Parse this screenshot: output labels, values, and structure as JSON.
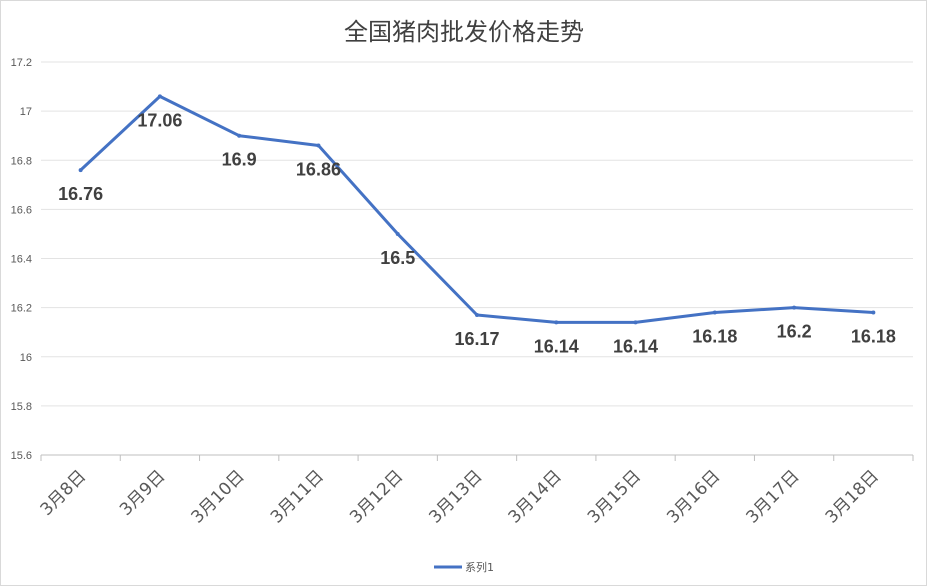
{
  "chart_data": {
    "type": "line",
    "title": "全国猪肉批发价格走势",
    "categories": [
      "3月8日",
      "3月9日",
      "3月10日",
      "3月11日",
      "3月12日",
      "3月13日",
      "3月14日",
      "3月15日",
      "3月16日",
      "3月17日",
      "3月18日"
    ],
    "series": [
      {
        "name": "系列1",
        "values": [
          16.76,
          17.06,
          16.9,
          16.86,
          16.5,
          16.17,
          16.14,
          16.14,
          16.18,
          16.2,
          16.18
        ],
        "data_labels": [
          "16.76",
          "17.06",
          "16.9",
          "16.86",
          "16.5",
          "16.17",
          "16.14",
          "16.14",
          "16.18",
          "16.2",
          "16.18"
        ],
        "color": "#4472C4"
      }
    ],
    "ylim": [
      15.6,
      17.2
    ],
    "yticks": [
      "15.6",
      "15.8",
      "16",
      "16.2",
      "16.4",
      "16.6",
      "16.8",
      "17",
      "17.2"
    ],
    "grid": true,
    "legend": "bottom"
  }
}
